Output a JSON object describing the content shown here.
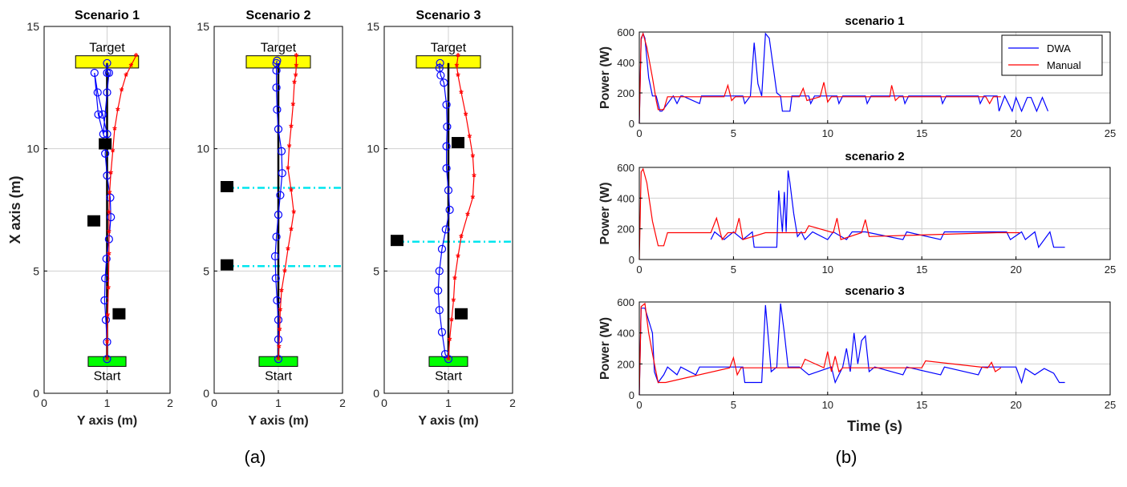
{
  "panel_labels": {
    "a": "(a)",
    "b": "(b)"
  },
  "colors": {
    "dwa": "#0000ff",
    "manual": "#ff0000",
    "reference": "#000000",
    "obstacle": "#000000",
    "target": "#ffff00",
    "start": "#00ff00",
    "wall": "#00e5ee",
    "grid": "#d0d0d0"
  },
  "chart_data": [
    {
      "type": "line",
      "title": "Scenario 1",
      "xlabel": "Y axis (m)",
      "ylabel": "X axis (m)",
      "xlim": [
        0,
        2
      ],
      "ylim": [
        0,
        15
      ],
      "xticks": [
        "0",
        "1",
        "2"
      ],
      "yticks": [
        "0",
        "5",
        "10",
        "15"
      ],
      "grid": true,
      "target": {
        "label": "Target",
        "x": [
          0.5,
          1.5
        ],
        "y": [
          13.3,
          13.8
        ]
      },
      "start": {
        "label": "Start",
        "x": [
          0.7,
          1.3
        ],
        "y": [
          1.1,
          1.5
        ]
      },
      "obstacles": [
        [
          0.97,
          10.2
        ],
        [
          0.79,
          7.05
        ],
        [
          1.19,
          3.25
        ]
      ],
      "walls": [],
      "reference_path": {
        "x": [
          1.0,
          1.0
        ],
        "y": [
          1.4,
          13.5
        ]
      },
      "series": [
        {
          "name": "DWA",
          "marker": "o",
          "x": [
            1.0,
            1.0,
            0.98,
            0.96,
            0.97,
            0.99,
            1.03,
            1.06,
            1.05,
            1.0,
            0.97,
            1.0,
            0.93,
            0.85,
            0.8,
            0.86,
            0.94,
            1.0,
            1.03,
            1.0,
            1.0
          ],
          "y": [
            1.4,
            2.1,
            3.0,
            3.8,
            4.7,
            5.5,
            6.3,
            7.2,
            8.0,
            8.9,
            9.8,
            10.6,
            11.4,
            12.3,
            13.1,
            11.4,
            10.6,
            12.3,
            13.1,
            13.1,
            13.5
          ]
        },
        {
          "name": "Manual",
          "marker": "*",
          "x": [
            1.0,
            1.0,
            1.01,
            1.02,
            1.03,
            1.03,
            1.03,
            1.04,
            1.06,
            1.09,
            1.12,
            1.17,
            1.23,
            1.3,
            1.38,
            1.46
          ],
          "y": [
            1.4,
            2.1,
            3.2,
            4.3,
            5.7,
            6.6,
            7.4,
            8.2,
            9.0,
            9.9,
            10.8,
            11.6,
            12.4,
            13.0,
            13.4,
            13.8
          ]
        }
      ]
    },
    {
      "type": "line",
      "title": "Scenario 2",
      "xlabel": "Y axis (m)",
      "ylabel": "",
      "xlim": [
        0,
        2
      ],
      "ylim": [
        0,
        15
      ],
      "xticks": [
        "0",
        "1",
        "2"
      ],
      "yticks": [
        "0",
        "5",
        "10",
        "15"
      ],
      "grid": true,
      "target": {
        "label": "Target",
        "x": [
          0.5,
          1.5
        ],
        "y": [
          13.3,
          13.8
        ]
      },
      "start": {
        "label": "Start",
        "x": [
          0.7,
          1.3
        ],
        "y": [
          1.1,
          1.5
        ]
      },
      "obstacles": [
        [
          0.2,
          8.45
        ],
        [
          0.2,
          5.25
        ]
      ],
      "walls": [
        8.4,
        5.2
      ],
      "reference_path": {
        "x": [
          1.0,
          1.0
        ],
        "y": [
          1.4,
          13.5
        ]
      },
      "series": [
        {
          "name": "DWA",
          "marker": "o",
          "x": [
            1.0,
            1.0,
            1.0,
            0.98,
            0.96,
            0.95,
            0.97,
            1.0,
            1.03,
            1.06,
            1.05,
            1.0,
            0.98,
            0.97,
            0.97,
            0.97,
            0.98
          ],
          "y": [
            1.4,
            2.2,
            3.0,
            3.8,
            4.7,
            5.6,
            6.4,
            7.3,
            8.1,
            9.0,
            9.9,
            10.8,
            11.6,
            12.5,
            13.2,
            13.5,
            13.6
          ]
        },
        {
          "name": "Manual",
          "marker": "*",
          "x": [
            1.0,
            1.01,
            1.02,
            1.03,
            1.05,
            1.1,
            1.15,
            1.2,
            1.24,
            1.2,
            1.15,
            1.17,
            1.2,
            1.23,
            1.25,
            1.27,
            1.28,
            1.28
          ],
          "y": [
            1.4,
            1.9,
            2.6,
            3.4,
            4.2,
            5.0,
            5.9,
            6.7,
            7.4,
            8.3,
            9.2,
            10.1,
            10.9,
            11.8,
            12.7,
            13.0,
            13.4,
            13.8
          ]
        }
      ]
    },
    {
      "type": "line",
      "title": "Scenario 3",
      "xlabel": "Y axis (m)",
      "ylabel": "",
      "xlim": [
        0,
        2
      ],
      "ylim": [
        0,
        15
      ],
      "xticks": [
        "0",
        "1",
        "2"
      ],
      "yticks": [
        "0",
        "5",
        "10",
        "15"
      ],
      "grid": true,
      "target": {
        "label": "Target",
        "x": [
          0.5,
          1.5
        ],
        "y": [
          13.3,
          13.8
        ]
      },
      "start": {
        "label": "Start",
        "x": [
          0.7,
          1.3
        ],
        "y": [
          1.1,
          1.5
        ]
      },
      "obstacles": [
        [
          1.15,
          10.25
        ],
        [
          0.2,
          6.25
        ],
        [
          1.2,
          3.25
        ]
      ],
      "walls": [
        6.2
      ],
      "reference_path": {
        "x": [
          1.0,
          1.0
        ],
        "y": [
          1.4,
          13.5
        ]
      },
      "series": [
        {
          "name": "DWA",
          "marker": "o",
          "x": [
            1.0,
            0.95,
            0.9,
            0.86,
            0.84,
            0.86,
            0.9,
            0.96,
            1.02,
            1.0,
            0.97,
            0.97,
            0.98,
            0.97,
            0.93,
            0.88,
            0.86,
            0.87
          ],
          "y": [
            1.4,
            1.6,
            2.5,
            3.4,
            4.2,
            5.0,
            5.9,
            6.7,
            7.5,
            8.3,
            9.2,
            10.1,
            10.9,
            11.8,
            12.7,
            13.0,
            13.3,
            13.5
          ]
        },
        {
          "name": "Manual",
          "marker": "*",
          "x": [
            1.0,
            1.02,
            1.05,
            1.08,
            1.1,
            1.15,
            1.2,
            1.3,
            1.38,
            1.4,
            1.38,
            1.33,
            1.27,
            1.2,
            1.15,
            1.13,
            1.15
          ],
          "y": [
            1.4,
            2.2,
            3.0,
            3.8,
            4.7,
            5.6,
            6.4,
            7.3,
            8.0,
            8.9,
            9.7,
            10.5,
            11.4,
            12.3,
            13.0,
            13.4,
            13.8
          ]
        }
      ]
    },
    {
      "type": "line",
      "title": "scenario 1",
      "xlabel": "",
      "ylabel": "Power (W)",
      "xlim": [
        0,
        25
      ],
      "ylim": [
        0,
        600
      ],
      "xticks": [
        "0",
        "5",
        "10",
        "15",
        "20",
        "25"
      ],
      "yticks": [
        "0",
        "200",
        "400",
        "600"
      ],
      "grid": true,
      "legend": {
        "position": "top-right"
      },
      "series": [
        {
          "name": "DWA",
          "x": [
            0,
            0.1,
            0.2,
            0.3,
            0.5,
            0.7,
            0.9,
            1.1,
            1.2,
            1.8,
            2.0,
            2.2,
            2.3,
            3.2,
            3.3,
            3.5,
            4.5,
            5.2,
            5.5,
            5.6,
            5.9,
            6.1,
            6.3,
            6.5,
            6.7,
            6.9,
            7.1,
            7.3,
            7.5,
            7.6,
            8.0,
            8.1,
            8.3,
            9.0,
            9.1,
            9.3,
            10.5,
            10.6,
            10.8,
            12.0,
            12.1,
            12.3,
            14.0,
            14.1,
            14.3,
            16.0,
            16.1,
            16.3,
            18.0,
            18.1,
            18.3,
            19.0,
            19.1,
            19.4,
            19.8,
            20.0,
            20.3,
            20.6,
            20.8,
            21.1,
            21.4,
            21.7
          ],
          "y": [
            0,
            550,
            590,
            560,
            300,
            180,
            180,
            80,
            80,
            180,
            130,
            180,
            180,
            130,
            180,
            180,
            180,
            180,
            180,
            130,
            180,
            530,
            260,
            180,
            590,
            560,
            380,
            200,
            180,
            80,
            80,
            180,
            180,
            180,
            130,
            180,
            180,
            130,
            180,
            180,
            130,
            180,
            180,
            130,
            180,
            180,
            130,
            180,
            180,
            130,
            180,
            180,
            80,
            180,
            80,
            170,
            80,
            170,
            170,
            80,
            170,
            80
          ]
        },
        {
          "name": "Manual",
          "x": [
            0,
            0.1,
            0.2,
            0.4,
            0.7,
            0.9,
            1.0,
            1.3,
            1.5,
            4.5,
            4.7,
            4.9,
            5.1,
            8.5,
            8.7,
            8.9,
            9.6,
            9.8,
            10.0,
            10.2,
            12.5,
            13.3,
            13.4,
            13.6,
            13.8,
            17.0,
            18.4,
            18.6,
            18.8,
            19.0,
            19.2
          ],
          "y": [
            0,
            560,
            590,
            500,
            300,
            150,
            90,
            90,
            175,
            175,
            250,
            150,
            175,
            175,
            230,
            150,
            175,
            270,
            140,
            175,
            175,
            175,
            250,
            150,
            175,
            175,
            175,
            130,
            175,
            175,
            175
          ]
        }
      ]
    },
    {
      "type": "line",
      "title": "scenario 2",
      "xlabel": "",
      "ylabel": "Power (W)",
      "xlim": [
        0,
        25
      ],
      "ylim": [
        0,
        600
      ],
      "xticks": [
        "0",
        "5",
        "10",
        "15",
        "20",
        "25"
      ],
      "yticks": [
        "0",
        "200",
        "400",
        "600"
      ],
      "grid": true,
      "series": [
        {
          "name": "DWA",
          "x": [
            3.8,
            4.0,
            4.5,
            5.0,
            5.5,
            6.0,
            6.1,
            7.3,
            7.4,
            7.6,
            7.7,
            7.8,
            7.9,
            8.0,
            8.2,
            8.4,
            8.6,
            8.8,
            9.2,
            10.0,
            10.3,
            11.0,
            11.3,
            12.0,
            14.0,
            14.2,
            16.0,
            16.2,
            19.5,
            19.7,
            20.3,
            20.5,
            21.0,
            21.2,
            21.8,
            22.0,
            22.4,
            22.6
          ],
          "y": [
            130,
            180,
            130,
            180,
            130,
            180,
            80,
            80,
            450,
            180,
            440,
            180,
            580,
            500,
            300,
            150,
            180,
            130,
            180,
            130,
            180,
            130,
            180,
            180,
            130,
            180,
            130,
            180,
            180,
            130,
            180,
            130,
            180,
            80,
            180,
            80,
            80,
            80
          ]
        },
        {
          "name": "Manual",
          "x": [
            0,
            0.1,
            0.2,
            0.4,
            0.7,
            1.0,
            1.3,
            1.5,
            3.8,
            4.1,
            4.4,
            4.7,
            5.1,
            5.3,
            5.5,
            6.7,
            8.8,
            9.0,
            10.3,
            10.5,
            10.7,
            11.8,
            12.0,
            12.2,
            19.0,
            20.2
          ],
          "y": [
            0,
            570,
            590,
            500,
            250,
            90,
            90,
            175,
            175,
            270,
            130,
            175,
            175,
            270,
            130,
            175,
            175,
            220,
            175,
            270,
            130,
            175,
            260,
            150,
            175,
            175
          ]
        }
      ]
    },
    {
      "type": "line",
      "title": "scenario 3",
      "xlabel": "Time (s)",
      "ylabel": "Power (W)",
      "xlim": [
        0,
        25
      ],
      "ylim": [
        0,
        600
      ],
      "xticks": [
        "0",
        "5",
        "10",
        "15",
        "20",
        "25"
      ],
      "yticks": [
        "0",
        "200",
        "400",
        "600"
      ],
      "grid": true,
      "series": [
        {
          "name": "DWA",
          "x": [
            0,
            0.1,
            0.3,
            0.7,
            0.8,
            1.0,
            1.3,
            1.5,
            2.0,
            2.2,
            3.0,
            3.2,
            4.5,
            5.5,
            5.6,
            6.5,
            6.7,
            6.9,
            7.0,
            7.3,
            7.5,
            7.7,
            7.9,
            8.5,
            9.0,
            10.2,
            10.4,
            10.8,
            11.0,
            11.2,
            11.4,
            11.6,
            11.8,
            12.0,
            12.2,
            12.5,
            14.0,
            14.2,
            16.0,
            16.2,
            18.0,
            18.2,
            19.5,
            20.0,
            20.3,
            20.5,
            21.0,
            21.5,
            22.0,
            22.3,
            22.6
          ],
          "y": [
            0,
            560,
            560,
            400,
            150,
            80,
            130,
            180,
            130,
            180,
            130,
            180,
            180,
            180,
            80,
            80,
            580,
            300,
            150,
            180,
            590,
            400,
            180,
            180,
            130,
            180,
            80,
            180,
            300,
            150,
            400,
            200,
            350,
            380,
            150,
            180,
            130,
            180,
            130,
            180,
            130,
            180,
            180,
            180,
            80,
            170,
            130,
            170,
            140,
            80,
            80
          ]
        },
        {
          "name": "Manual",
          "x": [
            0,
            0.1,
            0.3,
            0.5,
            0.8,
            1.0,
            1.4,
            4.8,
            5.0,
            5.2,
            5.4,
            8.6,
            8.8,
            9.8,
            10.0,
            10.2,
            10.4,
            10.6,
            10.8,
            15.0,
            15.2,
            18.5,
            18.7,
            18.9,
            19.2
          ],
          "y": [
            0,
            570,
            590,
            400,
            200,
            80,
            80,
            175,
            240,
            130,
            175,
            175,
            230,
            175,
            280,
            150,
            250,
            150,
            175,
            175,
            220,
            175,
            210,
            150,
            175
          ]
        }
      ]
    }
  ]
}
